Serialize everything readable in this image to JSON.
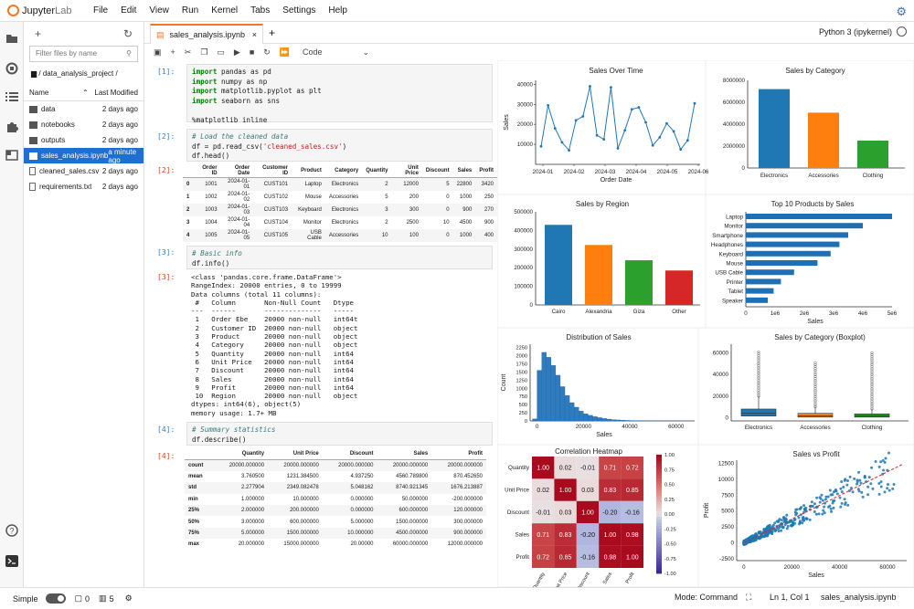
{
  "app": {
    "logo_main": "Jupyter",
    "logo_sub": "Lab"
  },
  "menu": [
    "File",
    "Edit",
    "View",
    "Run",
    "Kernel",
    "Tabs",
    "Settings",
    "Help"
  ],
  "filebrowser": {
    "filter_placeholder": "Filter files by name",
    "path": "/ data_analysis_project /",
    "col_name": "Name",
    "col_modified": "Last Modified",
    "files": [
      {
        "name": "data",
        "modified": "2 days ago",
        "type": "folder"
      },
      {
        "name": "notebooks",
        "modified": "2 days ago",
        "type": "folder"
      },
      {
        "name": "outputs",
        "modified": "2 days ago",
        "type": "folder"
      },
      {
        "name": "sales_analysis.ipynb",
        "modified": "a minute ago",
        "type": "notebook",
        "selected": true
      },
      {
        "name": "cleaned_sales.csv",
        "modified": "2 days ago",
        "type": "file"
      },
      {
        "name": "requirements.txt",
        "modified": "2 days ago",
        "type": "file"
      }
    ]
  },
  "tab": {
    "title": "sales_analysis.ipynb",
    "kernel": "Python 3 (ipykernel)"
  },
  "toolbar": {
    "cell_type": "Code"
  },
  "cells": {
    "c1_prompt": "[1]:",
    "c2_prompt": "[2]:",
    "o2_prompt": "[2]:",
    "c3_prompt": "[3]:",
    "o3_prompt": "[3]:",
    "c4_prompt": "[4]:",
    "o4_prompt": "[4]:",
    "c1_l1_kw": "import",
    "c1_l1_rest": " pandas as pd",
    "c1_l2_kw": "import",
    "c1_l2_rest": " numpy as np",
    "c1_l3_kw": "import",
    "c1_l3_rest": " matplotlib.pyplot as plt",
    "c1_l4_kw": "import",
    "c1_l4_rest": " seaborn as sns",
    "c1_l5": "%matplotlib inline",
    "c2_l1": "# Load the cleaned data",
    "c2_l2a": "df = pd.read_csv(",
    "c2_l2s": "'cleaned_sales.csv'",
    "c2_l2b": ")",
    "c2_l3": "df.head()",
    "c3_l1": "# Basic info",
    "c3_l2": "df.info()",
    "c4_l1": "# Summary statistics",
    "c4_l2": "df.describe()",
    "info_output": "<class 'pandas.core.frame.DataFrame'>\nRangeIndex: 20000 entries, 0 to 19999\nData columns (total 11 columns):\n #   Column       Non-Null Count   Dtype\n---  ------       --------------   -----\n 1   Order Ebe    20000 non-null   int64t\n 2   Customer ID  20000 non-null   object\n 3   Product      20000 non-null   object\n 4   Category     20000 non-null   object\n 5   Quantity     20000 non-null   int64\n 6   Unit Price   20000 non-null   int64\n 7   Discount     20000 non-null   int64\n 8   Sales        20000 non-null   int64\n 9   Profit       20000 non-null   int64\n 10  Region       20000 non-null   object\ndtypes: int64(6), object(5)\nmemory usage: 1.7+ MB"
  },
  "head_table": {
    "columns": [
      "",
      "Order ID",
      "Order Date",
      "Customer ID",
      "Product",
      "Category",
      "Quantity",
      "Unit Price",
      "Discount",
      "Sales",
      "Profit"
    ],
    "rows": [
      [
        "0",
        "1001",
        "2024-01-01",
        "CUST101",
        "Laptop",
        "Electronics",
        "2",
        "12000",
        "5",
        "22800",
        "3420"
      ],
      [
        "1",
        "1002",
        "2024-01-02",
        "CUST102",
        "Mouse",
        "Accessories",
        "5",
        "200",
        "0",
        "1000",
        "250"
      ],
      [
        "2",
        "1003",
        "2024-01-03",
        "CUST103",
        "Keyboard",
        "Electronics",
        "3",
        "300",
        "0",
        "900",
        "270"
      ],
      [
        "3",
        "1004",
        "2024-01-04",
        "CUST104",
        "Monitor",
        "Electronics",
        "2",
        "2500",
        "10",
        "4500",
        "900"
      ],
      [
        "4",
        "1005",
        "2024-01-05",
        "CUST105",
        "USB Cable",
        "Accessories",
        "10",
        "100",
        "0",
        "1000",
        "400"
      ]
    ]
  },
  "describe_table": {
    "columns": [
      "",
      "Quantity",
      "Unit Price",
      "Discount",
      "Sales",
      "Profit"
    ],
    "rows": [
      [
        "count",
        "20000.000000",
        "20000.000000",
        "20000.000000",
        "20000.000000",
        "20000.000000"
      ],
      [
        "mean",
        "3.760500",
        "1231.384500",
        "4.937250",
        "4560.789800",
        "870.452650"
      ],
      [
        "std",
        "2.277904",
        "2349.082478",
        "5.048162",
        "8740.921345",
        "1676.213887"
      ],
      [
        "min",
        "1.000000",
        "10.000000",
        "0.000000",
        "50.000000",
        "-200.000000"
      ],
      [
        "25%",
        "2.000000",
        "200.000000",
        "0.000000",
        "600.000000",
        "120.000000"
      ],
      [
        "50%",
        "3.000000",
        "600.000000",
        "5.000000",
        "1500.000000",
        "300.000000"
      ],
      [
        "75%",
        "5.000000",
        "1500.000000",
        "10.000000",
        "4500.000000",
        "900.000000"
      ],
      [
        "max",
        "20.000000",
        "15000.000000",
        "20.00000",
        "60000.000000",
        "12000.000000"
      ]
    ]
  },
  "chart_data": [
    {
      "type": "line",
      "title": "Sales Over Time",
      "xlabel": "Order Date",
      "ylabel": "Sales",
      "x_ticks": [
        "2024-01",
        "2024-02",
        "2024-03",
        "2024-04",
        "2024-05",
        "2024-06"
      ],
      "y_ticks": [
        "10000",
        "20000",
        "30000",
        "40000"
      ],
      "ylim": [
        0,
        42000
      ],
      "values": [
        9000,
        29500,
        18000,
        11000,
        7000,
        22000,
        24000,
        39000,
        14500,
        12500,
        38500,
        8000,
        17000,
        27500,
        28500,
        21000,
        9500,
        13500,
        20500,
        16500,
        7500,
        12000,
        30500
      ],
      "color": "#1f77b4"
    },
    {
      "type": "bar",
      "title": "Sales by Category",
      "categories": [
        "Electronics",
        "Accessories",
        "Clothing"
      ],
      "values": [
        7200000,
        5050000,
        2500000
      ],
      "y_ticks": [
        "0",
        "2000000",
        "4000000",
        "6000000",
        "8000000"
      ],
      "ylim": [
        0,
        8000000
      ],
      "colors": [
        "#1f77b4",
        "#ff7f0e",
        "#2ca02c"
      ]
    },
    {
      "type": "bar",
      "title": "Sales by Region",
      "categories": [
        "Cairo",
        "Alexandria",
        "Giza",
        "Other"
      ],
      "values": [
        430000,
        322000,
        240000,
        185000
      ],
      "y_ticks": [
        "0",
        "100000",
        "200000",
        "300000",
        "400000",
        "500000"
      ],
      "ylim": [
        0,
        500000
      ],
      "colors": [
        "#1f77b4",
        "#ff7f0e",
        "#2ca02c",
        "#d62728"
      ]
    },
    {
      "type": "bar",
      "orientation": "horizontal",
      "title": "Top 10 Products by Sales",
      "xlabel": "Sales",
      "categories": [
        "Laptop",
        "Monitor",
        "Smartphone",
        "Headphones",
        "Keyboard",
        "Mouse",
        "USB Cable",
        "Printer",
        "Tablet",
        "Speaker"
      ],
      "values": [
        5000000,
        4000000,
        3500000,
        3200000,
        2900000,
        2450000,
        1650000,
        1200000,
        950000,
        750000
      ],
      "x_ticks": [
        "0",
        "1e6",
        "2e6",
        "3e6",
        "4e6",
        "5e6"
      ],
      "xlim": [
        0,
        5000000
      ],
      "color": "#1f6fb4"
    },
    {
      "type": "histogram",
      "title": "Distribution of Sales",
      "xlabel": "Sales",
      "ylabel": "Count",
      "x_ticks": [
        "0",
        "20000",
        "40000",
        "60000"
      ],
      "xlim": [
        -3000,
        68000
      ],
      "y_ticks": [
        "0",
        "250",
        "500",
        "750",
        "1000",
        "1250",
        "1500",
        "1750",
        "2000",
        "2250"
      ],
      "ylim": [
        0,
        2350
      ],
      "bin_width": 2000,
      "bin_start": -2000,
      "counts": [
        60,
        1550,
        2100,
        1950,
        1700,
        1400,
        1050,
        780,
        560,
        420,
        300,
        220,
        170,
        130,
        100,
        75,
        55,
        40,
        30,
        22,
        15,
        10,
        8,
        6,
        4,
        3,
        2,
        2,
        1,
        1,
        1,
        1,
        0,
        0,
        0
      ],
      "color": "#2f7bbf"
    },
    {
      "type": "boxplot",
      "title": "Sales by Category (Boxplot)",
      "categories": [
        "Electronics",
        "Accessories",
        "Clothing"
      ],
      "y_ticks": [
        "0",
        "20000",
        "40000",
        "60000"
      ],
      "ylim": [
        -3000,
        68000
      ],
      "boxes": [
        {
          "q1": 1500,
          "median": 4000,
          "q3": 8000,
          "whisker_high": 20000,
          "outlier_max": 61000,
          "color": "#1f77b4"
        },
        {
          "q1": 500,
          "median": 1500,
          "q3": 4000,
          "whisker_high": 10000,
          "outlier_max": 52000,
          "color": "#ff7f0e"
        },
        {
          "q1": 500,
          "median": 1500,
          "q3": 3500,
          "whisker_high": 8000,
          "outlier_max": 61000,
          "color": "#2ca02c"
        }
      ]
    },
    {
      "type": "heatmap",
      "title": "Correlation Heatmap",
      "labels": [
        "Quantity",
        "Unit Price",
        "Discount",
        "Sales",
        "Profit"
      ],
      "matrix": [
        [
          "1.00",
          "0.02",
          "-0.01",
          "0.71",
          "0.72"
        ],
        [
          "0.02",
          "1.00",
          "0.03",
          "0.83",
          "0.85"
        ],
        [
          "-0.01",
          "0.03",
          "1.00",
          "-0.20",
          "-0.16"
        ],
        [
          "0.71",
          "0.83",
          "-0.20",
          "1.00",
          "0.98"
        ],
        [
          "0.72",
          "0.85",
          "-0.16",
          "0.98",
          "1.00"
        ]
      ],
      "colorbar_ticks": [
        "1.00",
        "0.75",
        "0.50",
        "0.25",
        "0.00",
        "-0.25",
        "-0.50",
        "-0.75",
        "-1.00"
      ]
    },
    {
      "type": "scatter",
      "title": "Sales vs Profit",
      "xlabel": "Sales",
      "ylabel": "Profit",
      "x_ticks": [
        "0",
        "20000",
        "40000",
        "60000"
      ],
      "xlim": [
        -3000,
        68000
      ],
      "y_ticks": [
        "-2500",
        "0",
        "2500",
        "5000",
        "7500",
        "10000",
        "12500"
      ],
      "ylim": [
        -2800,
        13000
      ],
      "trend": [
        [
          0,
          0
        ],
        [
          66000,
          12300
        ]
      ],
      "color": "#1f77b4",
      "trend_color": "#d62728"
    }
  ],
  "status": {
    "mode_label": "Simple",
    "errors": "0",
    "warnings": "5",
    "command": "Mode: Command",
    "cursor": "Ln 1, Col 1",
    "file": "sales_analysis.ipynb"
  }
}
